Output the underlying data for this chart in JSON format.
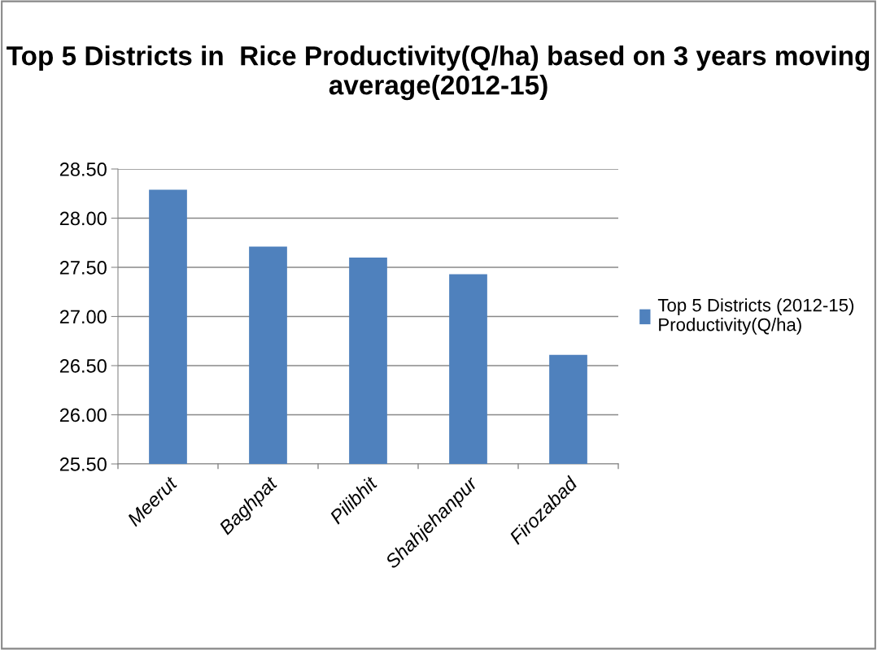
{
  "chart_data": {
    "type": "bar",
    "title": "Top 5 Districts in  Rice Productivity(Q/ha) based on 3 years moving average(2012-15)",
    "categories": [
      "Meerut",
      "Baghpat",
      "Pilibhit",
      "Shahjehanpur",
      "Firozabad"
    ],
    "series": [
      {
        "name": "Top 5 Districts (2012-15)\nProductivity(Q/ha)",
        "color": "#4f81bd",
        "values": [
          28.29,
          27.71,
          27.6,
          27.43,
          26.61
        ]
      }
    ],
    "ylim": [
      25.5,
      28.5
    ],
    "yticks": [
      {
        "value": 25.5,
        "label": "25.50"
      },
      {
        "value": 26,
        "label": "26.00"
      },
      {
        "value": 26.5,
        "label": "26.50"
      },
      {
        "value": 27,
        "label": "27.00"
      },
      {
        "value": 27.5,
        "label": "27.50"
      },
      {
        "value": 28,
        "label": "28.00"
      },
      {
        "value": 28.5,
        "label": "28.50"
      }
    ],
    "grid": "y",
    "legend": "right"
  }
}
